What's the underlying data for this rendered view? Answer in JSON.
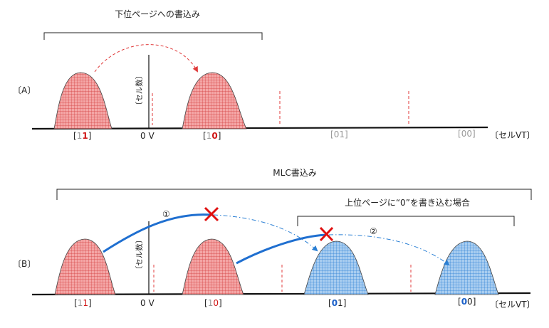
{
  "panel_a": {
    "section_label": "〔A〕",
    "title": "下位ページへの書込み",
    "y_axis_label": "〔セル数〕",
    "zero_label": "0 V",
    "x_axis_label": "〔セルVT〕",
    "states": [
      {
        "open": "[",
        "first": "1",
        "second": "1",
        "close": "]"
      },
      {
        "open": "[",
        "first": "1",
        "second": "0",
        "close": "]"
      },
      {
        "open": "[",
        "first": "0",
        "second": "1",
        "close": "]"
      },
      {
        "open": "[",
        "first": "0",
        "second": "0",
        "close": "]"
      }
    ]
  },
  "panel_b": {
    "section_label": "〔B〕",
    "title": "MLC書込み",
    "subtitle": "上位ページに“0”を書き込む場合",
    "y_axis_label": "〔セル数〕",
    "zero_label": "0 V",
    "x_axis_label": "〔セルVT〕",
    "step_1": "①",
    "step_2": "②",
    "states": [
      {
        "open": "[",
        "first": "1",
        "second": "1",
        "close": "]"
      },
      {
        "open": "[",
        "first": "1",
        "second": "0",
        "close": "]"
      },
      {
        "open": "[",
        "first": "0",
        "second": "1",
        "close": "]"
      },
      {
        "open": "[",
        "first": "0",
        "second": "0",
        "close": "]"
      }
    ]
  },
  "colors": {
    "red_fill": "#f4a6a6",
    "red_grid": "#d23b3b",
    "blue_fill": "#a9cdf0",
    "blue_grid": "#2a7fd4",
    "blue_arrow": "#1f6fd0",
    "cross_red": "#e01010",
    "gray_text": "#9a9a9a",
    "red_text": "#d01818",
    "blue_text": "#1a5fc8"
  }
}
